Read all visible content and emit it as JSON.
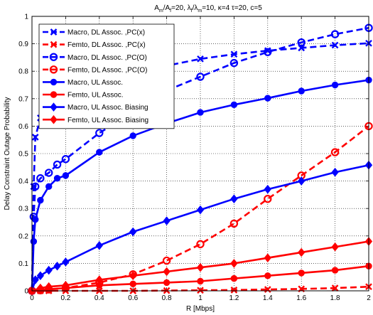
{
  "colors": {
    "macro": "#0000ff",
    "femto": "#ff0000"
  },
  "chart_data": {
    "type": "line",
    "title": "A_m/A_f=20, λ_f/λ_m=10, κ=4 τ=20, c=5",
    "title_parts": {
      "A": "A",
      "m": "m",
      "slash1": "/A",
      "f": "f",
      "eq1": "=20, λ",
      "f2": "f",
      "slash2": "/λ",
      "m2": "m",
      "rest": "=10, κ=4 τ=20, c=5"
    },
    "xlabel": "R [Mbps]",
    "ylabel": "Delay Constraint Outage Probability",
    "xlim": [
      0,
      2
    ],
    "ylim": [
      0,
      1
    ],
    "xticks": [
      "0",
      "0.2",
      "0.4",
      "0.6",
      "0.8",
      "1",
      "1.2",
      "1.4",
      "1.6",
      "1.8",
      "2"
    ],
    "yticks": [
      "0",
      "0.1",
      "0.2",
      "0.3",
      "0.4",
      "0.5",
      "0.6",
      "0.7",
      "0.8",
      "0.9",
      "1"
    ],
    "grid": true,
    "legend_position": "top-left",
    "series": [
      {
        "name": "Macro, DL Assoc. ,PC(x)",
        "color": "#0000ff",
        "dash": "dashed",
        "marker": "x",
        "x": [
          0,
          0.01,
          0.02,
          0.05,
          0.1,
          0.2,
          0.4,
          0.6,
          0.8,
          1.0,
          1.2,
          1.4,
          1.6,
          1.8,
          2.0
        ],
        "y": [
          0,
          0.38,
          0.56,
          0.63,
          0.66,
          0.71,
          0.76,
          0.8,
          0.82,
          0.845,
          0.862,
          0.875,
          0.885,
          0.895,
          0.902
        ]
      },
      {
        "name": "Femto, DL Assoc. ,PC(x)",
        "color": "#ff0000",
        "dash": "dashed",
        "marker": "x",
        "x": [
          0,
          0.05,
          0.1,
          0.2,
          0.4,
          0.6,
          0.8,
          1.0,
          1.2,
          1.4,
          1.6,
          1.8,
          2.0
        ],
        "y": [
          0,
          0,
          0,
          0,
          0,
          0,
          0.001,
          0.002,
          0.003,
          0.005,
          0.007,
          0.01,
          0.015
        ]
      },
      {
        "name": "Macro, DL Assoc. ,PC(O)",
        "color": "#0000ff",
        "dash": "dashed",
        "marker": "o",
        "x": [
          0,
          0.01,
          0.02,
          0.05,
          0.1,
          0.15,
          0.2,
          0.4,
          0.6,
          0.8,
          1.0,
          1.2,
          1.4,
          1.6,
          1.8,
          2.0
        ],
        "y": [
          0,
          0.27,
          0.38,
          0.41,
          0.43,
          0.46,
          0.48,
          0.575,
          0.65,
          0.73,
          0.78,
          0.83,
          0.87,
          0.905,
          0.935,
          0.958
        ]
      },
      {
        "name": "Femto, DL Assoc. ,PC(O)",
        "color": "#ff0000",
        "dash": "dashed",
        "marker": "o",
        "x": [
          0,
          0.05,
          0.1,
          0.2,
          0.4,
          0.6,
          0.8,
          1.0,
          1.2,
          1.4,
          1.6,
          1.8,
          2.0
        ],
        "y": [
          0,
          0.002,
          0.005,
          0.01,
          0.03,
          0.06,
          0.11,
          0.17,
          0.245,
          0.335,
          0.42,
          0.505,
          0.6
        ]
      },
      {
        "name": "Macro, UL Assoc.",
        "color": "#0000ff",
        "dash": "solid",
        "marker": "dot",
        "x": [
          0,
          0.01,
          0.02,
          0.05,
          0.1,
          0.15,
          0.2,
          0.4,
          0.6,
          0.8,
          1.0,
          1.2,
          1.4,
          1.6,
          1.8,
          2.0
        ],
        "y": [
          0,
          0.18,
          0.26,
          0.33,
          0.38,
          0.41,
          0.42,
          0.505,
          0.565,
          0.61,
          0.65,
          0.678,
          0.702,
          0.728,
          0.75,
          0.768
        ]
      },
      {
        "name": "Femto, UL Assoc.",
        "color": "#ff0000",
        "dash": "solid",
        "marker": "dot",
        "x": [
          0,
          0.05,
          0.1,
          0.2,
          0.4,
          0.6,
          0.8,
          1.0,
          1.2,
          1.4,
          1.6,
          1.8,
          2.0
        ],
        "y": [
          0,
          0.004,
          0.006,
          0.01,
          0.02,
          0.025,
          0.03,
          0.035,
          0.045,
          0.055,
          0.065,
          0.075,
          0.09
        ]
      },
      {
        "name": "Macro, UL Assoc. Biasing",
        "color": "#0000ff",
        "dash": "solid",
        "marker": "diamond",
        "x": [
          0,
          0.02,
          0.05,
          0.1,
          0.15,
          0.2,
          0.4,
          0.6,
          0.8,
          1.0,
          1.2,
          1.4,
          1.6,
          1.8,
          2.0
        ],
        "y": [
          0,
          0.04,
          0.055,
          0.075,
          0.09,
          0.105,
          0.165,
          0.215,
          0.255,
          0.295,
          0.335,
          0.37,
          0.4,
          0.432,
          0.458
        ]
      },
      {
        "name": "Femto, UL Assoc. Biasing",
        "color": "#ff0000",
        "dash": "solid",
        "marker": "diamond",
        "x": [
          0,
          0.05,
          0.1,
          0.2,
          0.4,
          0.6,
          0.8,
          1.0,
          1.2,
          1.4,
          1.6,
          1.8,
          2.0
        ],
        "y": [
          0,
          0.01,
          0.015,
          0.02,
          0.04,
          0.055,
          0.07,
          0.085,
          0.1,
          0.12,
          0.14,
          0.16,
          0.18
        ]
      }
    ]
  }
}
